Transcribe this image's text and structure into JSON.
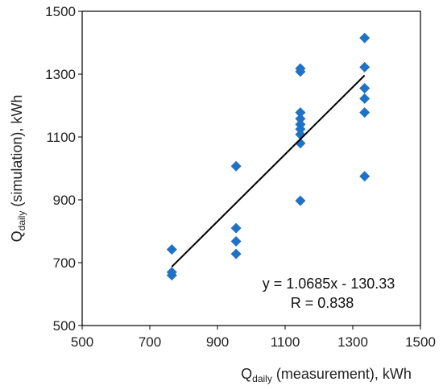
{
  "chart_data": {
    "type": "scatter",
    "xlabel": {
      "main": "Q",
      "sub": "daily",
      "rest": " (measurement), kWh"
    },
    "ylabel": {
      "main": "Q",
      "sub": "daily",
      "rest": " (simulation), kWh"
    },
    "xlim": [
      500,
      1500
    ],
    "ylim": [
      500,
      1500
    ],
    "xticks": [
      "500",
      "700",
      "900",
      "1100",
      "1300",
      "1500"
    ],
    "yticks": [
      "500",
      "700",
      "900",
      "1100",
      "1300",
      "1500"
    ],
    "marker": "diamond",
    "marker_color": "#1f72c6",
    "grid": false,
    "points": [
      [
        765,
        742
      ],
      [
        765,
        670
      ],
      [
        765,
        660
      ],
      [
        955,
        1007
      ],
      [
        955,
        810
      ],
      [
        955,
        768
      ],
      [
        955,
        728
      ],
      [
        1145,
        1318
      ],
      [
        1145,
        1308
      ],
      [
        1145,
        1178
      ],
      [
        1145,
        1158
      ],
      [
        1145,
        1140
      ],
      [
        1145,
        1125
      ],
      [
        1145,
        1108
      ],
      [
        1145,
        1080
      ],
      [
        1145,
        897
      ],
      [
        1335,
        1415
      ],
      [
        1335,
        1322
      ],
      [
        1335,
        1255
      ],
      [
        1335,
        1222
      ],
      [
        1335,
        1178
      ],
      [
        1335,
        975
      ]
    ],
    "trendline": {
      "slope": 1.0685,
      "intercept": -130.33,
      "x_range": [
        765,
        1335
      ],
      "color": "#000000"
    },
    "annotations": {
      "equation": "y = 1.0685x - 130.33",
      "r": "R = 0.838"
    }
  }
}
